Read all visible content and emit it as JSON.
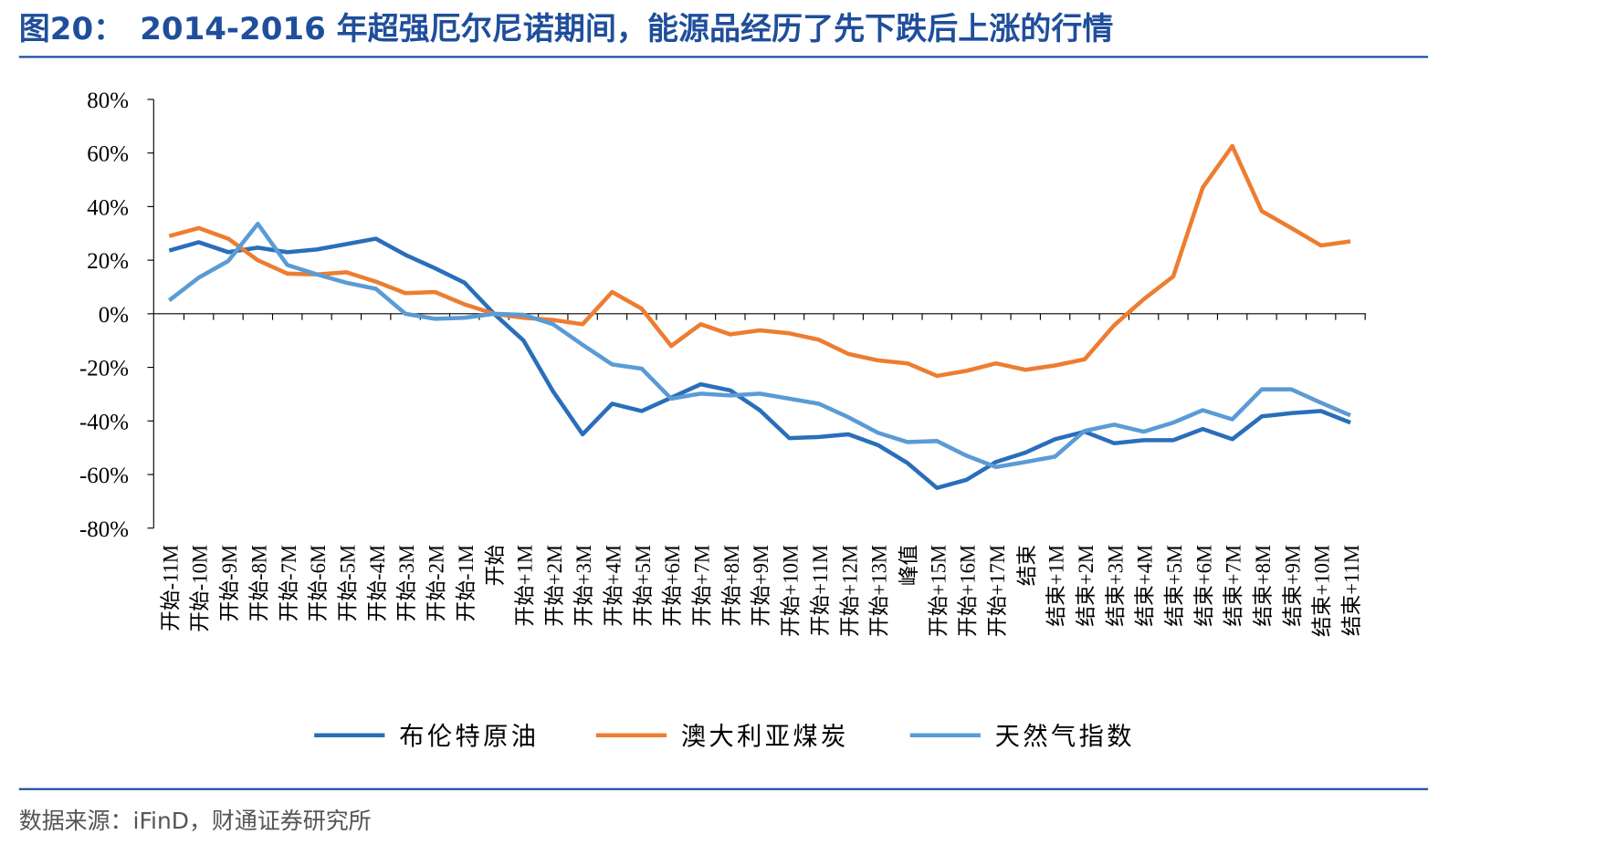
{
  "header": {
    "title": "图20：　2014-2016 年超强厄尔尼诺期间，能源品经历了先下跌后上涨的行情"
  },
  "chart_data": {
    "type": "line",
    "categories": [
      "开始-11M",
      "开始-10M",
      "开始-9M",
      "开始-8M",
      "开始-7M",
      "开始-6M",
      "开始-5M",
      "开始-4M",
      "开始-3M",
      "开始-2M",
      "开始-1M",
      "开始",
      "开始+1M",
      "开始+2M",
      "开始+3M",
      "开始+4M",
      "开始+5M",
      "开始+6M",
      "开始+7M",
      "开始+8M",
      "开始+9M",
      "开始+10M",
      "开始+11M",
      "开始+12M",
      "开始+13M",
      "峰值",
      "开始+15M",
      "开始+16M",
      "开始+17M",
      "结束",
      "结束+1M",
      "结束+2M",
      "结束+3M",
      "结束+4M",
      "结束+5M",
      "结束+6M",
      "结束+7M",
      "结束+8M",
      "结束+9M",
      "结束+10M",
      "结束+11M"
    ],
    "series": [
      {
        "name": "布伦特原油",
        "color": "#2a6ebb",
        "values": [
          23.6,
          26.7,
          23,
          24.7,
          23,
          24,
          26,
          28,
          22,
          17,
          11.6,
          0,
          -10,
          -29,
          -45,
          -33.6,
          -36.3,
          -31.3,
          -26.3,
          -28.6,
          -36,
          -46.4,
          -46,
          -45,
          -49,
          -55.7,
          -65,
          -62,
          -55.3,
          -51.8,
          -46.8,
          -44,
          -48.3,
          -47.2,
          -47.2,
          -43,
          -46.8,
          -38.3,
          -37.1,
          -36.3,
          -40.6
        ]
      },
      {
        "name": "澳大利亚煤炭",
        "color": "#ed7d31",
        "values": [
          29,
          32,
          28,
          20,
          15,
          14.7,
          15.5,
          12,
          7.7,
          8.1,
          3.5,
          0,
          -1.5,
          -2.3,
          -3.9,
          8.1,
          1.9,
          -12,
          -3.9,
          -7.7,
          -6.2,
          -7.3,
          -9.7,
          -15,
          -17.4,
          -18.5,
          -23.2,
          -21.3,
          -18.5,
          -20.9,
          -19.3,
          -17,
          -4.3,
          5.4,
          13.9,
          47.1,
          62.6,
          38.3,
          32,
          25.5,
          27
        ]
      },
      {
        "name": "天然气指数",
        "color": "#5b9bd5",
        "values": [
          5,
          13.5,
          19.7,
          33.6,
          18.2,
          14.7,
          11.6,
          9.3,
          0,
          -1.9,
          -1.5,
          0,
          -0.4,
          -3.9,
          -11.6,
          -18.9,
          -20.5,
          -31.7,
          -29.8,
          -30.5,
          -29.8,
          -31.7,
          -33.6,
          -38.6,
          -44.4,
          -47.9,
          -47.5,
          -53,
          -57.2,
          -55.3,
          -53.3,
          -43.7,
          -41.4,
          -44,
          -40.6,
          -36,
          -39.4,
          -28.2,
          -28.2,
          -33.2,
          -37.9
        ]
      }
    ],
    "ylim": [
      -80,
      80
    ],
    "yticks": [
      {
        "value": -80,
        "label": "-80%"
      },
      {
        "value": -60,
        "label": "-60%"
      },
      {
        "value": -40,
        "label": "-40%"
      },
      {
        "value": -20,
        "label": "-20%"
      },
      {
        "value": 0,
        "label": "0%"
      },
      {
        "value": 20,
        "label": "20%"
      },
      {
        "value": 40,
        "label": "40%"
      },
      {
        "value": 60,
        "label": "60%"
      },
      {
        "value": 80,
        "label": "80%"
      }
    ]
  },
  "footer": {
    "source": "数据来源：iFinD，财通证券研究所"
  }
}
